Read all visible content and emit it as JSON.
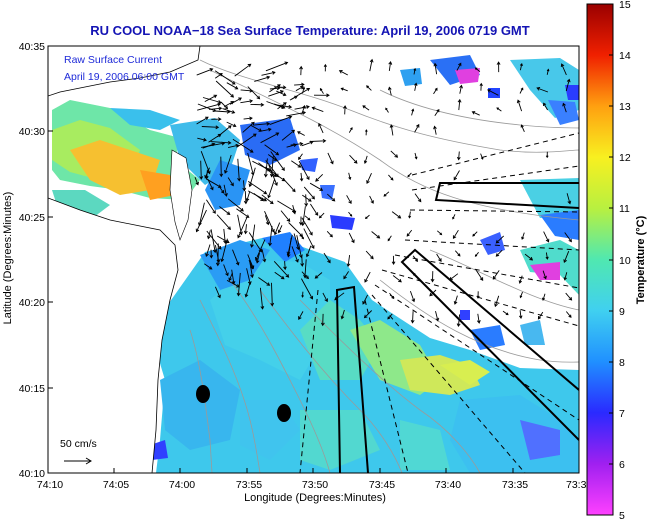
{
  "title": "RU COOL  NOAA−18  Sea Surface Temperature:  April 19, 2006 0719 GMT",
  "annotation": {
    "line1": "Raw Surface Current",
    "line2": "April 19, 2006 06:00 GMT"
  },
  "scale_label": "50 cm/s",
  "x_axis": {
    "label": "Longitude (Degrees:Minutes)",
    "ticks": [
      "74:10",
      "74:05",
      "74:00",
      "73:55",
      "73:50",
      "73:45",
      "73:40",
      "73:35",
      "73:3"
    ]
  },
  "y_axis": {
    "label": "Latitude (Degrees:Minutes)",
    "ticks": [
      "40:35",
      "40:30",
      "40:25",
      "40:20",
      "40:15",
      "40:10"
    ]
  },
  "colorbar": {
    "label": "Temperature (°C)",
    "ticks": [
      "15",
      "14",
      "13",
      "12",
      "11",
      "10",
      "9",
      "8",
      "7",
      "6",
      "5"
    ],
    "range": [
      5,
      15
    ]
  },
  "colors": {
    "title": "#1414b4",
    "annotation": "#1e2ad8",
    "land": "#ffffff",
    "markers": "#000000"
  },
  "markers": [
    {
      "name": "station-1",
      "lon": "74:00.4",
      "lat": "40:14.7"
    },
    {
      "name": "station-2",
      "lon": "73:57.2",
      "lat": "40:13.6"
    }
  ],
  "icons": [
    "scale-arrow-icon",
    "station-dot-icon"
  ]
}
